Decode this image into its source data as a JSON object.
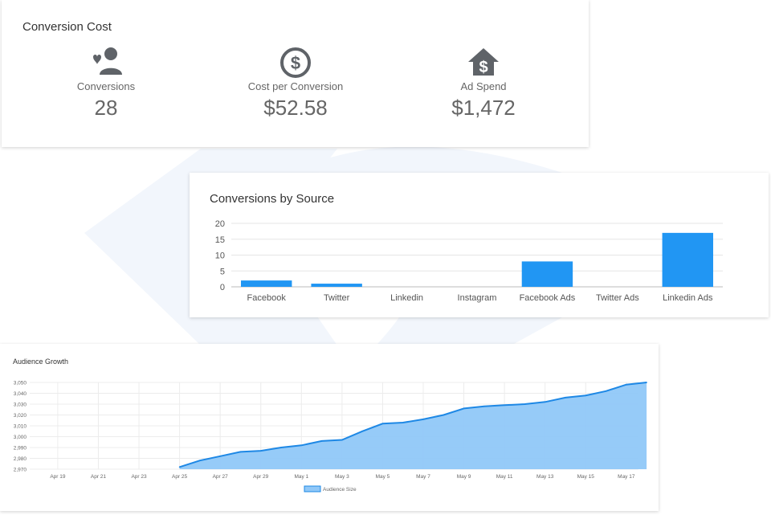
{
  "conversion_cost": {
    "title": "Conversion Cost",
    "kpis": [
      {
        "icon": "heart-person-icon",
        "label": "Conversions",
        "value": "28"
      },
      {
        "icon": "dollar-circle-icon",
        "label": "Cost per Conversion",
        "value": "$52.58"
      },
      {
        "icon": "dollar-house-icon",
        "label": "Ad Spend",
        "value": "$1,472"
      }
    ]
  },
  "colors": {
    "bar": "#2196f3",
    "area_fill": "#90c8f8",
    "area_line": "#1e88e5",
    "icon": "#5f6368"
  },
  "chart_data": [
    {
      "type": "bar",
      "title": "Conversions by Source",
      "categories": [
        "Facebook",
        "Twitter",
        "Linkedin",
        "Instagram",
        "Facebook Ads",
        "Twitter Ads",
        "Linkedin Ads"
      ],
      "values": [
        2,
        1,
        0,
        0,
        8,
        0,
        17
      ],
      "ylim": [
        0,
        20
      ],
      "yticks": [
        0,
        5,
        10,
        15,
        20
      ],
      "grid": true
    },
    {
      "type": "area",
      "title": "Audience Growth",
      "legend": [
        "Audience Size"
      ],
      "legend_position": "bottom",
      "ylim": [
        2970,
        3050
      ],
      "yticks": [
        "2,970",
        "2,980",
        "2,990",
        "3,000",
        "3,010",
        "3,020",
        "3,030",
        "3,040",
        "3,050"
      ],
      "xticks": [
        "Apr 19",
        "Apr 21",
        "Apr 23",
        "Apr 25",
        "Apr 27",
        "Apr 29",
        "May 1",
        "May 3",
        "May 5",
        "May 7",
        "May 9",
        "May 11",
        "May 13",
        "May 15",
        "May 17"
      ],
      "grid": true,
      "series": [
        {
          "name": "Audience Size",
          "points": [
            [
              "Apr 25",
              2972
            ],
            [
              "Apr 26",
              2978
            ],
            [
              "Apr 27",
              2982
            ],
            [
              "Apr 28",
              2986
            ],
            [
              "Apr 29",
              2987
            ],
            [
              "Apr 30",
              2990
            ],
            [
              "May 1",
              2992
            ],
            [
              "May 2",
              2996
            ],
            [
              "May 3",
              2997
            ],
            [
              "May 4",
              3005
            ],
            [
              "May 5",
              3012
            ],
            [
              "May 6",
              3013
            ],
            [
              "May 7",
              3016
            ],
            [
              "May 8",
              3020
            ],
            [
              "May 9",
              3026
            ],
            [
              "May 10",
              3028
            ],
            [
              "May 11",
              3029
            ],
            [
              "May 12",
              3030
            ],
            [
              "May 13",
              3032
            ],
            [
              "May 14",
              3036
            ],
            [
              "May 15",
              3038
            ],
            [
              "May 16",
              3042
            ],
            [
              "May 17",
              3048
            ],
            [
              "May 18",
              3050
            ]
          ]
        }
      ]
    }
  ]
}
